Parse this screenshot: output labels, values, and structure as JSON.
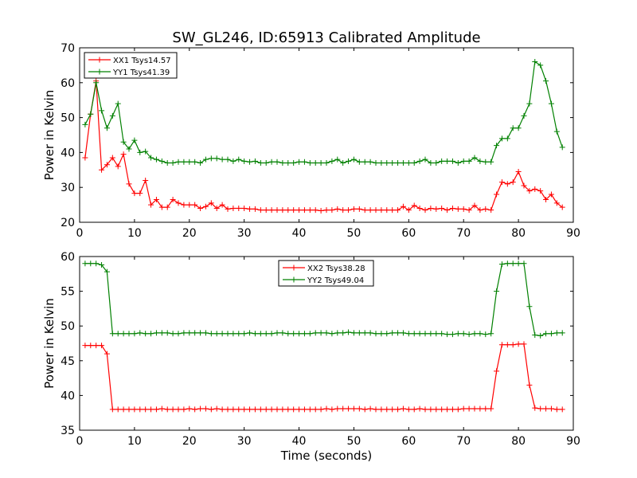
{
  "figure": {
    "title": "SW_GL246, ID:65913 Calibrated Amplitude",
    "xlabel": "Time (seconds)"
  },
  "chart_data": [
    {
      "type": "line",
      "ylabel": "Power in Kelvin",
      "xlim": [
        0,
        90
      ],
      "ylim": [
        20,
        70
      ],
      "xticks": [
        0,
        10,
        20,
        30,
        40,
        50,
        60,
        70,
        80,
        90
      ],
      "yticks": [
        20,
        30,
        40,
        50,
        60,
        70
      ],
      "grid": false,
      "legend_position": "top-left",
      "x": [
        1,
        2,
        3,
        4,
        5,
        6,
        7,
        8,
        9,
        10,
        11,
        12,
        13,
        14,
        15,
        16,
        17,
        18,
        19,
        20,
        21,
        22,
        23,
        24,
        25,
        26,
        27,
        28,
        29,
        30,
        31,
        32,
        33,
        34,
        35,
        36,
        37,
        38,
        39,
        40,
        41,
        42,
        43,
        44,
        45,
        46,
        47,
        48,
        49,
        50,
        51,
        52,
        53,
        54,
        55,
        56,
        57,
        58,
        59,
        60,
        61,
        62,
        63,
        64,
        65,
        66,
        67,
        68,
        69,
        70,
        71,
        72,
        73,
        74,
        75,
        76,
        77,
        78,
        79,
        80,
        81,
        82,
        83,
        84,
        85,
        86,
        87,
        88
      ],
      "series": [
        {
          "name": "XX1 Tsys14.57",
          "color": "#ff0000",
          "values": [
            38.5,
            51.0,
            60.5,
            35.0,
            36.5,
            38.5,
            36.0,
            39.5,
            31.0,
            28.3,
            28.3,
            32.0,
            25.0,
            26.5,
            24.3,
            24.3,
            26.5,
            25.5,
            25.0,
            25.0,
            25.0,
            24.0,
            24.5,
            25.5,
            24.0,
            25.0,
            23.8,
            24.0,
            24.0,
            24.0,
            23.8,
            23.8,
            23.5,
            23.5,
            23.5,
            23.5,
            23.5,
            23.5,
            23.5,
            23.5,
            23.5,
            23.5,
            23.5,
            23.3,
            23.5,
            23.5,
            23.8,
            23.5,
            23.5,
            23.8,
            23.8,
            23.5,
            23.5,
            23.5,
            23.5,
            23.5,
            23.5,
            23.5,
            24.5,
            23.5,
            24.8,
            24.0,
            23.5,
            24.0,
            23.8,
            24.0,
            23.5,
            24.0,
            23.8,
            23.8,
            23.5,
            24.8,
            23.5,
            23.8,
            23.5,
            28.0,
            31.5,
            31.0,
            31.5,
            34.5,
            30.5,
            29.0,
            29.5,
            29.0,
            26.5,
            28.0,
            25.5,
            24.3
          ]
        },
        {
          "name": "YY1 Tsys41.39",
          "color": "#008000",
          "values": [
            48.0,
            51.0,
            60.0,
            52.0,
            47.0,
            50.5,
            54.0,
            43.0,
            41.0,
            43.5,
            40.0,
            40.3,
            38.5,
            38.0,
            37.5,
            37.0,
            37.0,
            37.3,
            37.3,
            37.3,
            37.3,
            37.0,
            38.0,
            38.3,
            38.3,
            38.0,
            38.0,
            37.5,
            38.0,
            37.5,
            37.3,
            37.5,
            37.0,
            37.0,
            37.3,
            37.3,
            37.0,
            37.0,
            37.0,
            37.3,
            37.3,
            37.0,
            37.0,
            37.0,
            37.0,
            37.5,
            38.0,
            37.0,
            37.5,
            38.0,
            37.3,
            37.3,
            37.3,
            37.0,
            37.0,
            37.0,
            37.0,
            37.0,
            37.0,
            37.0,
            37.0,
            37.5,
            38.0,
            37.0,
            37.0,
            37.5,
            37.5,
            37.5,
            37.0,
            37.5,
            37.5,
            38.5,
            37.5,
            37.3,
            37.3,
            42.0,
            44.0,
            44.0,
            47.0,
            47.0,
            50.5,
            54.0,
            66.0,
            65.0,
            60.5,
            54.0,
            46.0,
            41.5
          ]
        }
      ]
    },
    {
      "type": "line",
      "ylabel": "Power in Kelvin",
      "xlabel": "Time (seconds)",
      "xlim": [
        0,
        90
      ],
      "ylim": [
        35,
        60
      ],
      "xticks": [
        0,
        10,
        20,
        30,
        40,
        50,
        60,
        70,
        80,
        90
      ],
      "yticks": [
        35,
        40,
        45,
        50,
        55,
        60
      ],
      "grid": false,
      "legend_position": "top-center",
      "x": [
        1,
        2,
        3,
        4,
        5,
        6,
        7,
        8,
        9,
        10,
        11,
        12,
        13,
        14,
        15,
        16,
        17,
        18,
        19,
        20,
        21,
        22,
        23,
        24,
        25,
        26,
        27,
        28,
        29,
        30,
        31,
        32,
        33,
        34,
        35,
        36,
        37,
        38,
        39,
        40,
        41,
        42,
        43,
        44,
        45,
        46,
        47,
        48,
        49,
        50,
        51,
        52,
        53,
        54,
        55,
        56,
        57,
        58,
        59,
        60,
        61,
        62,
        63,
        64,
        65,
        66,
        67,
        68,
        69,
        70,
        71,
        72,
        73,
        74,
        75,
        76,
        77,
        78,
        79,
        80,
        81,
        82,
        83,
        84,
        85,
        86,
        87,
        88
      ],
      "series": [
        {
          "name": "XX2 Tsys38.28",
          "color": "#ff0000",
          "values": [
            47.2,
            47.2,
            47.2,
            47.2,
            46.0,
            38.0,
            38.0,
            38.0,
            38.0,
            38.0,
            38.0,
            38.0,
            38.0,
            38.0,
            38.1,
            38.0,
            38.0,
            38.0,
            38.0,
            38.1,
            38.0,
            38.1,
            38.1,
            38.0,
            38.1,
            38.0,
            38.0,
            38.0,
            38.0,
            38.0,
            38.0,
            38.0,
            38.0,
            38.0,
            38.0,
            38.0,
            38.0,
            38.0,
            38.0,
            38.0,
            38.0,
            38.0,
            38.0,
            38.0,
            38.1,
            38.0,
            38.1,
            38.1,
            38.1,
            38.1,
            38.1,
            38.0,
            38.1,
            38.0,
            38.0,
            38.0,
            38.0,
            38.0,
            38.1,
            38.0,
            38.0,
            38.1,
            38.0,
            38.0,
            38.0,
            38.0,
            38.0,
            38.0,
            38.0,
            38.1,
            38.1,
            38.1,
            38.1,
            38.1,
            38.1,
            43.5,
            47.3,
            47.3,
            47.3,
            47.4,
            47.4,
            41.5,
            38.2,
            38.1,
            38.1,
            38.1,
            38.0,
            38.0
          ]
        },
        {
          "name": "YY2 Tsys49.04",
          "color": "#008000",
          "values": [
            59.0,
            59.0,
            59.0,
            58.8,
            57.8,
            48.9,
            48.9,
            48.9,
            48.9,
            48.9,
            49.0,
            48.9,
            48.9,
            49.0,
            49.0,
            49.0,
            48.9,
            48.9,
            49.0,
            49.0,
            49.0,
            49.0,
            49.0,
            48.9,
            48.9,
            48.9,
            48.9,
            48.9,
            48.9,
            48.9,
            49.0,
            48.9,
            48.9,
            48.9,
            48.9,
            49.0,
            49.0,
            48.9,
            48.9,
            48.9,
            48.9,
            48.9,
            49.0,
            49.0,
            49.0,
            48.9,
            49.0,
            49.0,
            49.1,
            49.0,
            49.0,
            49.0,
            49.0,
            48.9,
            48.9,
            48.9,
            49.0,
            49.0,
            49.0,
            48.9,
            48.9,
            48.9,
            48.9,
            48.9,
            48.9,
            48.9,
            48.8,
            48.8,
            48.9,
            48.9,
            48.8,
            48.9,
            48.9,
            48.8,
            48.9,
            55.0,
            58.9,
            59.0,
            59.0,
            59.0,
            59.0,
            52.8,
            48.7,
            48.6,
            48.9,
            48.9,
            49.0,
            49.0
          ]
        }
      ]
    }
  ]
}
